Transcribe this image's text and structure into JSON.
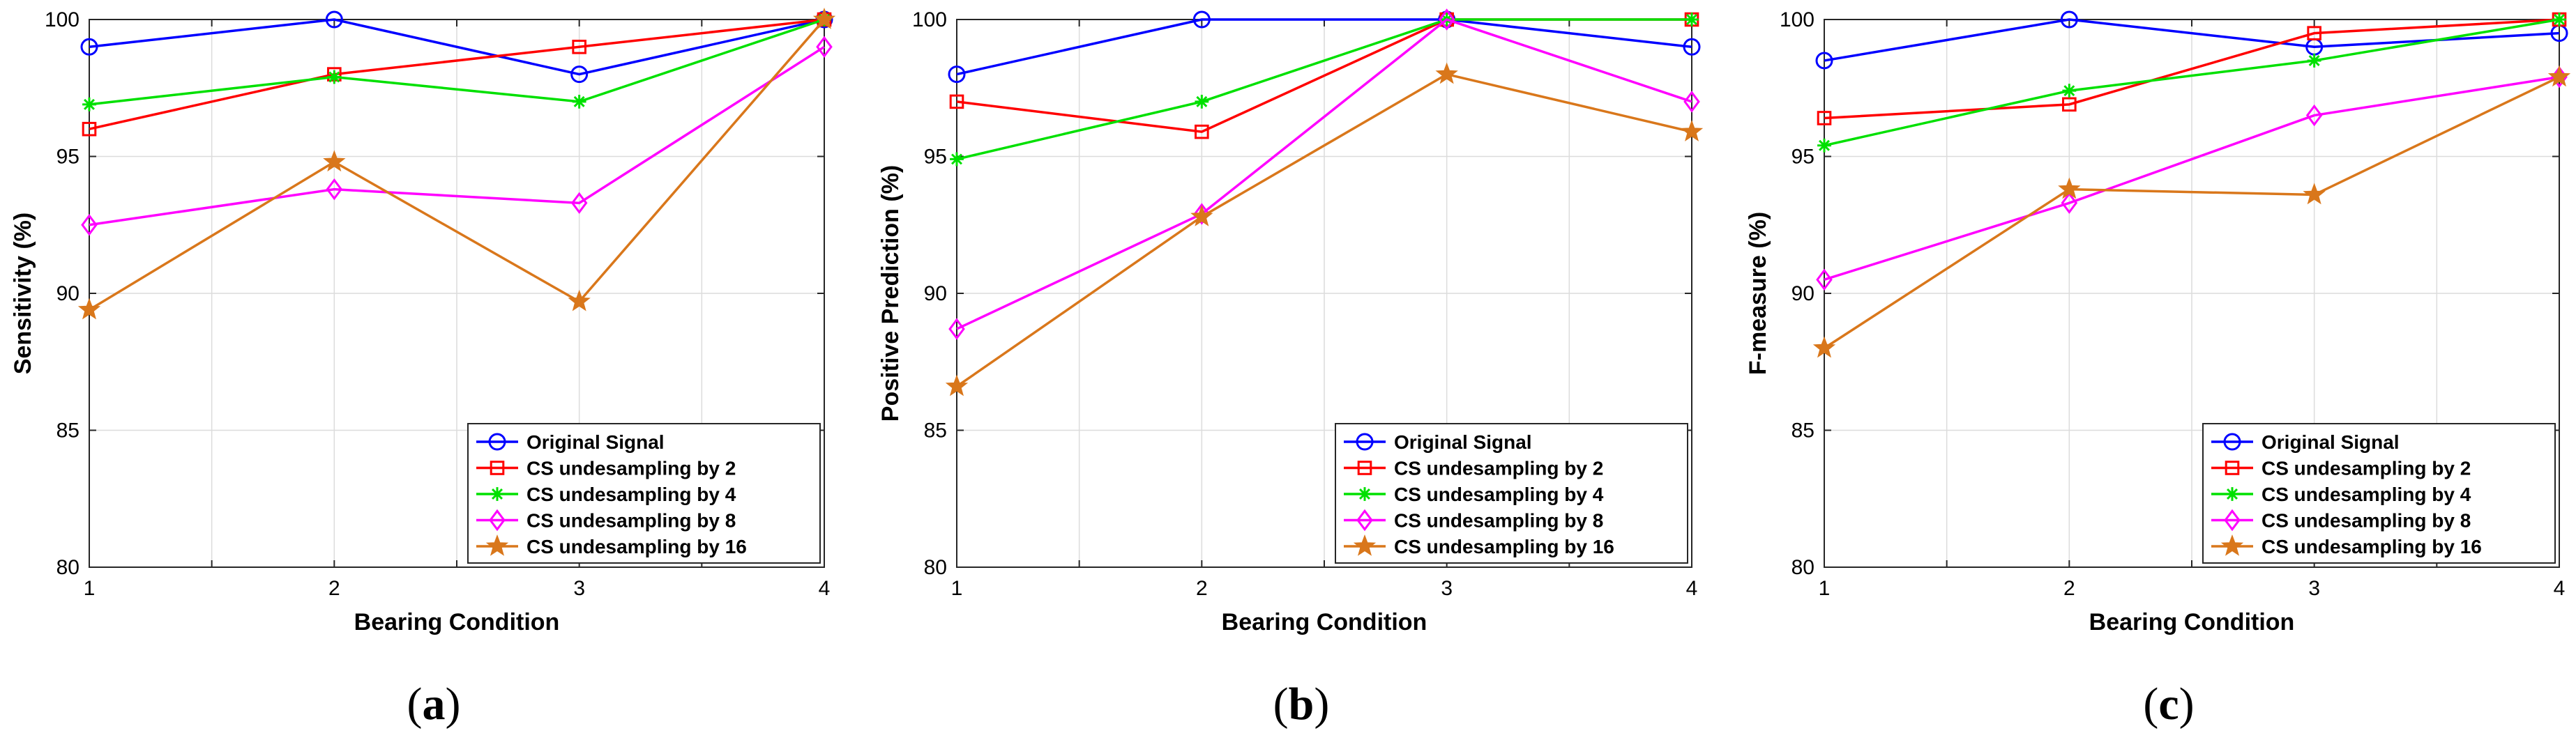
{
  "chart_data": [
    {
      "type": "line",
      "panel_label": "a",
      "xlabel": "Bearing Condition",
      "ylabel": "Sensitivity (%)",
      "x": [
        1,
        2,
        3,
        4
      ],
      "x_ticks": [
        "1",
        "2",
        "3",
        "4"
      ],
      "xlim": [
        1,
        4
      ],
      "ylim": [
        80,
        100
      ],
      "y_ticks": [
        "80",
        "85",
        "90",
        "95",
        "100"
      ],
      "grid": true,
      "legend_position": "bottom-right",
      "series": [
        {
          "name": "Original Signal",
          "values": [
            99,
            100,
            98,
            100
          ],
          "color": "#0000ff",
          "marker": "circle"
        },
        {
          "name": "CS undesampling by 2",
          "values": [
            96,
            98,
            99,
            100
          ],
          "color": "#ff0000",
          "marker": "square"
        },
        {
          "name": "CS undesampling by 4",
          "values": [
            96.9,
            97.9,
            97,
            100
          ],
          "color": "#00e000",
          "marker": "asterisk"
        },
        {
          "name": "CS undesampling by 8",
          "values": [
            92.5,
            93.8,
            93.3,
            99
          ],
          "color": "#ff00ff",
          "marker": "diamond"
        },
        {
          "name": "CS undesampling by 16",
          "values": [
            89.4,
            94.8,
            89.7,
            100
          ],
          "color": "#d9771b",
          "marker": "star"
        }
      ]
    },
    {
      "type": "line",
      "panel_label": "b",
      "xlabel": "Bearing Condition",
      "ylabel": "Positive Prediction (%)",
      "x": [
        1,
        2,
        3,
        4
      ],
      "x_ticks": [
        "1",
        "2",
        "3",
        "4"
      ],
      "xlim": [
        1,
        4
      ],
      "ylim": [
        80,
        100
      ],
      "y_ticks": [
        "80",
        "85",
        "90",
        "95",
        "100"
      ],
      "grid": true,
      "legend_position": "bottom-right",
      "series": [
        {
          "name": "Original Signal",
          "values": [
            98,
            100,
            100,
            99
          ],
          "color": "#0000ff",
          "marker": "circle"
        },
        {
          "name": "CS undesampling by 2",
          "values": [
            97,
            95.9,
            100,
            100
          ],
          "color": "#ff0000",
          "marker": "square"
        },
        {
          "name": "CS undesampling by 4",
          "values": [
            94.9,
            97,
            100,
            100
          ],
          "color": "#00e000",
          "marker": "asterisk"
        },
        {
          "name": "CS undesampling by 8",
          "values": [
            88.7,
            92.9,
            100,
            97
          ],
          "color": "#ff00ff",
          "marker": "diamond"
        },
        {
          "name": "CS undesampling by 16",
          "values": [
            86.6,
            92.8,
            98,
            95.9
          ],
          "color": "#d9771b",
          "marker": "star"
        }
      ]
    },
    {
      "type": "line",
      "panel_label": "c",
      "xlabel": "Bearing Condition",
      "ylabel": "F-measure (%)",
      "x": [
        1,
        2,
        3,
        4
      ],
      "x_ticks": [
        "1",
        "2",
        "3",
        "4"
      ],
      "xlim": [
        1,
        4
      ],
      "ylim": [
        80,
        100
      ],
      "y_ticks": [
        "80",
        "85",
        "90",
        "95",
        "100"
      ],
      "grid": true,
      "legend_position": "bottom-right",
      "series": [
        {
          "name": "Original Signal",
          "values": [
            98.5,
            100,
            99,
            99.5
          ],
          "color": "#0000ff",
          "marker": "circle"
        },
        {
          "name": "CS undesampling by 2",
          "values": [
            96.4,
            96.9,
            99.5,
            100
          ],
          "color": "#ff0000",
          "marker": "square"
        },
        {
          "name": "CS undesampling by 4",
          "values": [
            95.4,
            97.4,
            98.5,
            100
          ],
          "color": "#00e000",
          "marker": "asterisk"
        },
        {
          "name": "CS undesampling by 8",
          "values": [
            90.5,
            93.3,
            96.5,
            97.9
          ],
          "color": "#ff00ff",
          "marker": "diamond"
        },
        {
          "name": "CS undesampling by 16",
          "values": [
            88,
            93.8,
            93.6,
            97.9
          ],
          "color": "#d9771b",
          "marker": "star"
        }
      ]
    }
  ]
}
